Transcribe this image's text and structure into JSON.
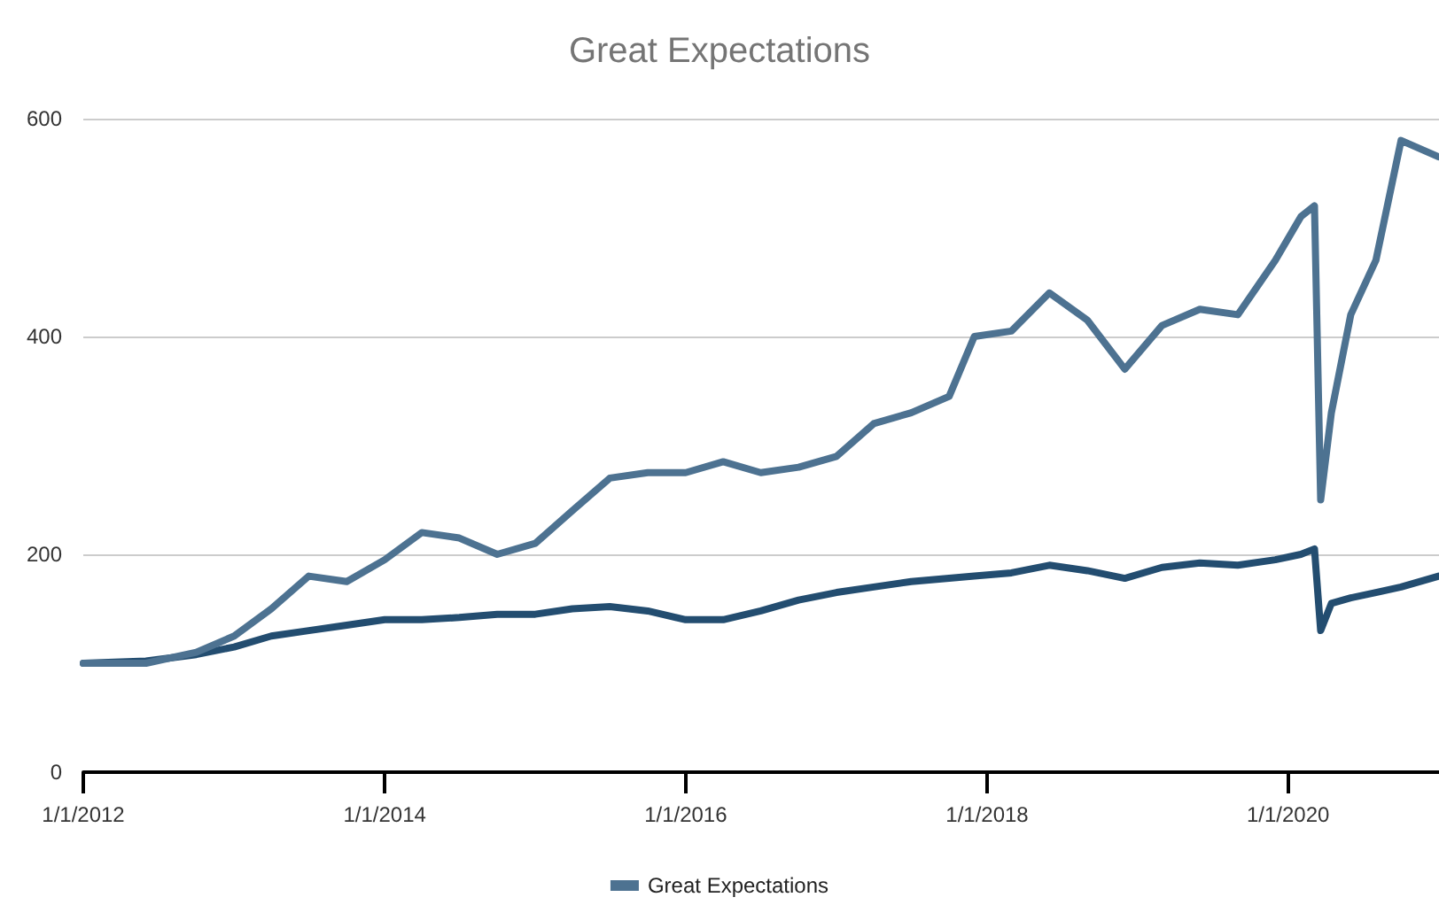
{
  "chart_data": {
    "type": "line",
    "title": "Great Expectations",
    "x": [
      "2012-01-01",
      "2012-06-01",
      "2012-10-01",
      "2013-01-01",
      "2013-04-01",
      "2013-07-01",
      "2013-10-01",
      "2014-01-01",
      "2014-04-01",
      "2014-07-01",
      "2014-10-01",
      "2015-01-01",
      "2015-04-01",
      "2015-07-01",
      "2015-10-01",
      "2016-01-01",
      "2016-04-01",
      "2016-07-01",
      "2016-10-01",
      "2017-01-01",
      "2017-04-01",
      "2017-07-01",
      "2017-10-01",
      "2017-12-01",
      "2018-03-01",
      "2018-06-01",
      "2018-09-01",
      "2018-12-01",
      "2019-03-01",
      "2019-06-01",
      "2019-09-01",
      "2019-12-01",
      "2020-02-01",
      "2020-03-05",
      "2020-03-20",
      "2020-04-15",
      "2020-06-01",
      "2020-08-01",
      "2020-10-01",
      "2020-12-31"
    ],
    "series": [
      {
        "color": "#234d70",
        "values": [
          100,
          102,
          108,
          115,
          125,
          130,
          135,
          140,
          140,
          142,
          145,
          145,
          150,
          152,
          148,
          140,
          140,
          148,
          158,
          165,
          170,
          175,
          178,
          180,
          183,
          190,
          185,
          178,
          188,
          192,
          190,
          195,
          200,
          205,
          130,
          155,
          160,
          165,
          170,
          180
        ]
      },
      {
        "name": "Great Expectations",
        "color": "#4d7291",
        "values": [
          100,
          100,
          110,
          125,
          150,
          180,
          175,
          195,
          220,
          215,
          200,
          210,
          240,
          270,
          275,
          275,
          285,
          275,
          280,
          290,
          320,
          330,
          345,
          400,
          405,
          440,
          415,
          370,
          410,
          425,
          420,
          470,
          510,
          520,
          250,
          330,
          420,
          470,
          580,
          565
        ]
      }
    ],
    "xlim": [
      "2012-01-01",
      "2021-01-01"
    ],
    "xticks": [
      {
        "value": "2012-01-01",
        "label": "1/1/2012"
      },
      {
        "value": "2014-01-01",
        "label": "1/1/2014"
      },
      {
        "value": "2016-01-01",
        "label": "1/1/2016"
      },
      {
        "value": "2018-01-01",
        "label": "1/1/2018"
      },
      {
        "value": "2020-01-01",
        "label": "1/1/2020"
      }
    ],
    "ylim": [
      0,
      600
    ],
    "yticks": [
      0,
      200,
      400,
      600
    ],
    "grid": "y",
    "legend": "bottom",
    "marker": "none",
    "line_style": "solid"
  }
}
